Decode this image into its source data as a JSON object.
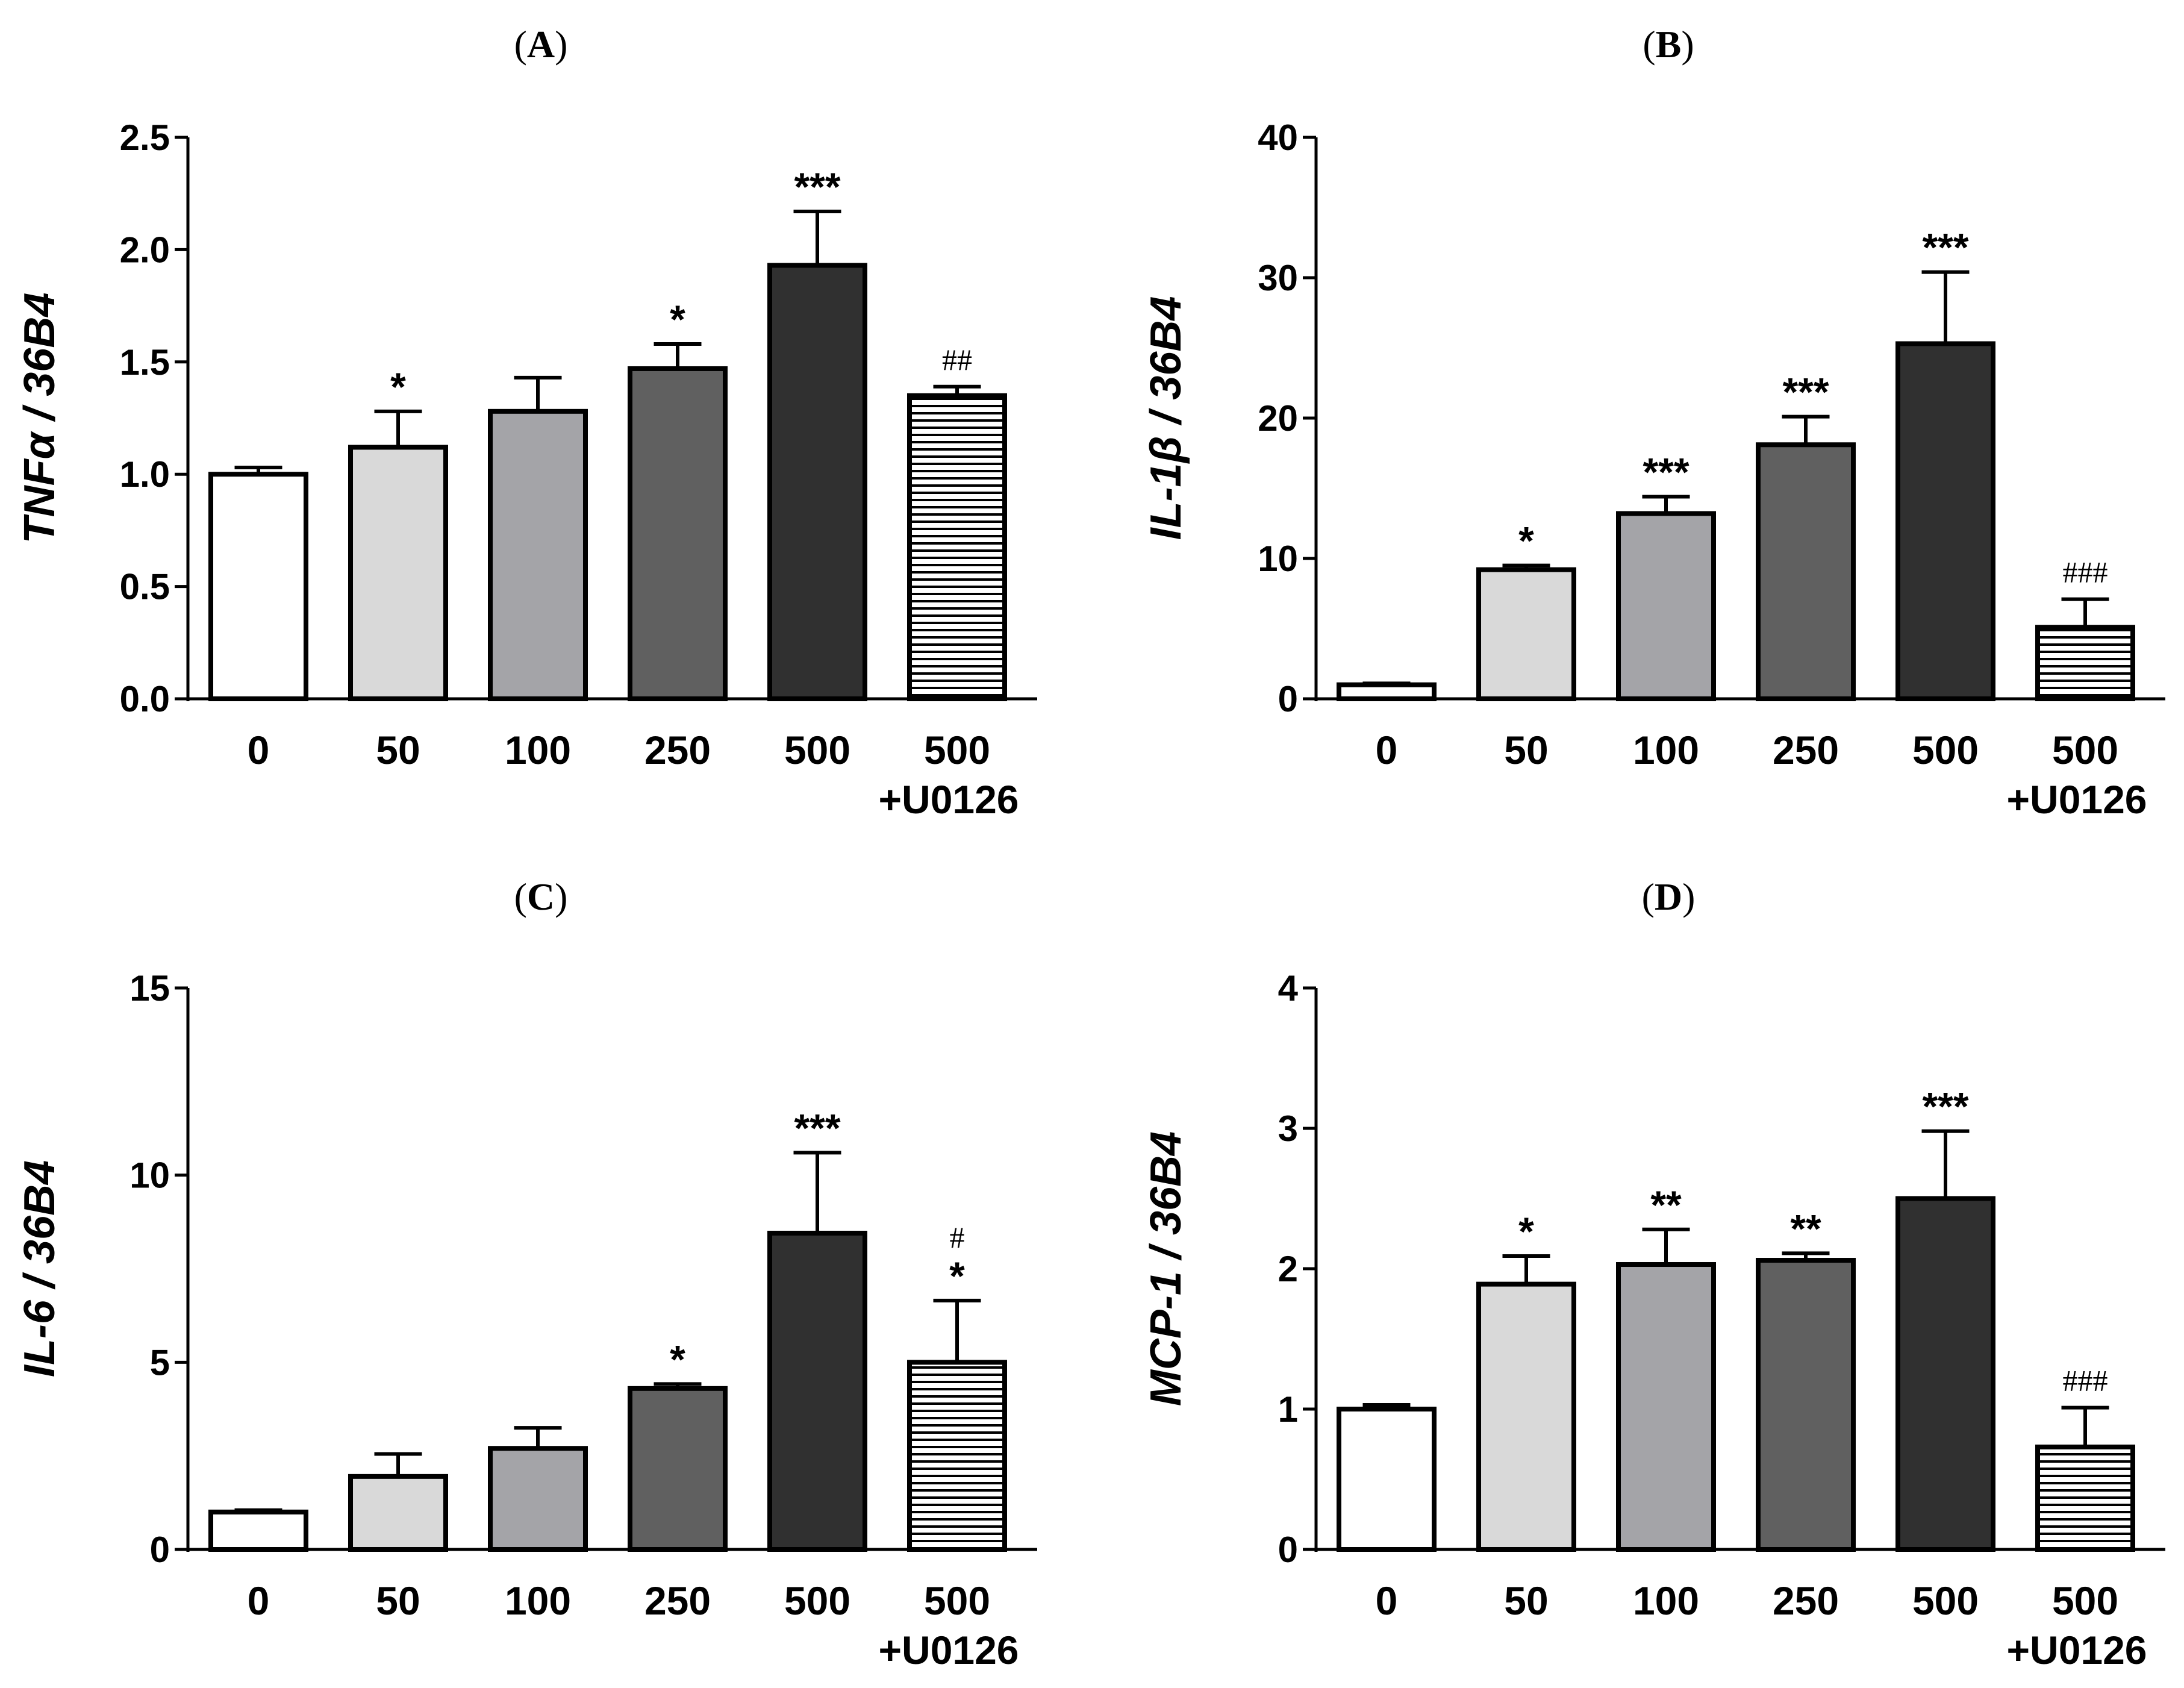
{
  "colors": {
    "axis": "#000000",
    "bar_fills": [
      "#ffffff",
      "#d9d9d9",
      "#a4a4a8",
      "#606060",
      "#303030",
      "#ffffff"
    ],
    "stripe": "#000000"
  },
  "categories": [
    "0",
    "50",
    "100",
    "250",
    "500",
    "500"
  ],
  "category_sublabels": [
    "",
    "",
    "",
    "",
    "",
    "+U0126"
  ],
  "chart_data": [
    {
      "type": "bar",
      "panel": "(A)",
      "panel_letter": "A",
      "ylabel": "TNFα / 36B4",
      "ylim": [
        0,
        2.5
      ],
      "yticks": [
        0,
        0.5,
        1.0,
        1.5,
        2.0,
        2.5
      ],
      "ytick_labels": [
        "0.0",
        "0.5",
        "1.0",
        "1.5",
        "2.0",
        "2.5"
      ],
      "categories": [
        "0",
        "50",
        "100",
        "250",
        "500",
        "500 +U0126"
      ],
      "values": [
        1.0,
        1.12,
        1.28,
        1.47,
        1.93,
        1.35
      ],
      "errors": [
        0.03,
        0.16,
        0.15,
        0.11,
        0.24,
        0.04
      ],
      "significance": [
        "",
        "*",
        "",
        "*",
        "***",
        ""
      ],
      "hash": [
        "",
        "",
        "",
        "",
        "",
        "##"
      ]
    },
    {
      "type": "bar",
      "panel": "(B)",
      "panel_letter": "B",
      "ylabel": "IL-1β / 36B4",
      "ylim": [
        0,
        40
      ],
      "yticks": [
        0,
        10,
        20,
        30,
        40
      ],
      "ytick_labels": [
        "0",
        "10",
        "20",
        "30",
        "40"
      ],
      "categories": [
        "0",
        "50",
        "100",
        "250",
        "500",
        "500 +U0126"
      ],
      "values": [
        1.0,
        9.2,
        13.2,
        18.1,
        25.3,
        5.1
      ],
      "errors": [
        0.1,
        0.3,
        1.2,
        2.0,
        5.1,
        2.0
      ],
      "significance": [
        "",
        "*",
        "***",
        "***",
        "***",
        ""
      ],
      "hash": [
        "",
        "",
        "",
        "",
        "",
        "###"
      ]
    },
    {
      "type": "bar",
      "panel": "(C)",
      "panel_letter": "C",
      "ylabel": "IL-6 / 36B4",
      "ylim": [
        0,
        15
      ],
      "yticks": [
        0,
        5,
        10,
        15
      ],
      "ytick_labels": [
        "0",
        "5",
        "10",
        "15"
      ],
      "categories": [
        "0",
        "50",
        "100",
        "250",
        "500",
        "500 +U0126"
      ],
      "values": [
        1.0,
        1.95,
        2.7,
        4.3,
        8.45,
        5.0
      ],
      "errors": [
        0.05,
        0.6,
        0.55,
        0.12,
        2.15,
        1.65
      ],
      "significance": [
        "",
        "",
        "",
        "*",
        "***",
        "*"
      ],
      "hash": [
        "",
        "",
        "",
        "",
        "",
        "#"
      ]
    },
    {
      "type": "bar",
      "panel": "(D)",
      "panel_letter": "D",
      "ylabel": "MCP-1 / 36B4",
      "ylim": [
        0,
        4
      ],
      "yticks": [
        0,
        1,
        2,
        3,
        4
      ],
      "ytick_labels": [
        "0",
        "1",
        "2",
        "3",
        "4"
      ],
      "categories": [
        "0",
        "50",
        "100",
        "250",
        "500",
        "500 +U0126"
      ],
      "values": [
        1.0,
        1.89,
        2.03,
        2.06,
        2.5,
        0.73
      ],
      "errors": [
        0.03,
        0.2,
        0.25,
        0.05,
        0.48,
        0.28
      ],
      "significance": [
        "",
        "*",
        "**",
        "**",
        "***",
        ""
      ],
      "hash": [
        "",
        "",
        "",
        "",
        "",
        "###"
      ]
    }
  ]
}
